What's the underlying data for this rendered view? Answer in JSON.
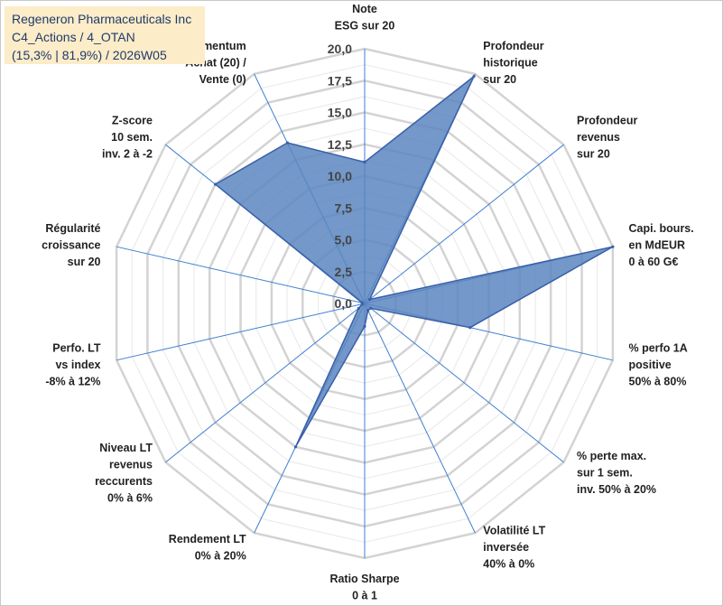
{
  "title": {
    "line1": "Regeneron Pharmaceuticals Inc",
    "line2": "C4_Actions / 4_OTAN",
    "line3": "(15,3% | 81,9%) / 2026W05"
  },
  "chart_data": {
    "type": "radar",
    "rlim": [
      0,
      20
    ],
    "ticks": [
      "0,0",
      "2,5",
      "5,0",
      "7,5",
      "10,0",
      "12,5",
      "15,0",
      "17,5",
      "20,0"
    ],
    "tick_values": [
      0,
      2.5,
      5,
      7.5,
      10,
      12.5,
      15,
      17.5,
      20
    ],
    "minor_step": 1.25,
    "categories": [
      [
        "Note",
        "ESG sur 20"
      ],
      [
        "Profondeur",
        "historique",
        "sur 20"
      ],
      [
        "Profondeur",
        "revenus",
        "sur 20"
      ],
      [
        "Capi. bours.",
        "en MdEUR",
        "0 à 60 G€"
      ],
      [
        "% perfo 1A",
        "positive",
        "50% à 80%"
      ],
      [
        "% perte max.",
        "sur 1 sem.",
        "inv. 50% à 20%"
      ],
      [
        "Volatilité LT",
        "inversée",
        "40% à 0%"
      ],
      [
        "Ratio Sharpe",
        "0 à 1"
      ],
      [
        "Rendement LT",
        "0% à 20%"
      ],
      [
        "Niveau LT",
        "revenus",
        "reccurents",
        "0% à 6%"
      ],
      [
        "Perfo. LT",
        "vs index",
        "-8% à 12%"
      ],
      [
        "Régularité",
        "croissance",
        "sur 20"
      ],
      [
        "Z-score",
        "10 sem.",
        "inv. 2 à -2"
      ],
      [
        "Momentum",
        "Achat (20) /",
        "Vente (0)"
      ]
    ],
    "series": [
      {
        "name": "Regeneron Pharmaceuticals Inc",
        "values": [
          11.1,
          19.8,
          0.5,
          20.0,
          8.5,
          0.6,
          0.6,
          1.8,
          12.5,
          0.6,
          0.2,
          0.2,
          15.0,
          14.0
        ],
        "fill": "#5b86c0",
        "stroke": "#3a5fa8"
      }
    ],
    "colors": {
      "grid": "#d3d3d3",
      "minor_grid": "#ebebeb",
      "spoke": "#3f7fd0"
    },
    "legend": "none"
  }
}
